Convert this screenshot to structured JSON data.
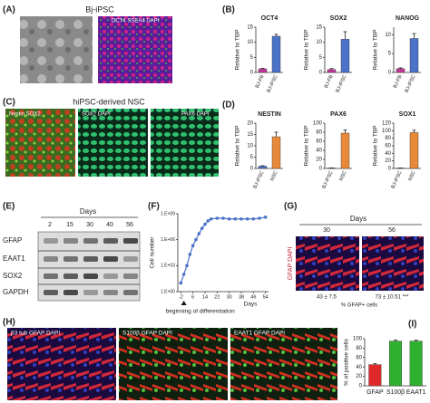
{
  "panels": {
    "A": {
      "label": "(A)",
      "title": "Bj-iPSC",
      "caption": "OCT4 SSEA4 DAPI"
    },
    "B": {
      "label": "(B)"
    },
    "C": {
      "label": "(C)",
      "title": "hiPSC-derived NSC",
      "captions": [
        "Nestin SOX2",
        "SOX2 DAPI",
        "PAX6 DAPI"
      ]
    },
    "D": {
      "label": "(D)"
    },
    "E": {
      "label": "(E)",
      "header": "Days",
      "lanes": [
        "2",
        "15",
        "30",
        "40",
        "56"
      ],
      "rows": [
        "GFAP",
        "EAAT1",
        "SOX2",
        "GAPDH"
      ]
    },
    "F": {
      "label": "(F)"
    },
    "G": {
      "label": "(G)",
      "header": "Days",
      "days": [
        "30",
        "56"
      ],
      "stain": "GFAP DAPI",
      "counts": [
        "43 ± 7.5",
        "73 ± 10.51 ***"
      ],
      "caption": "% GFAP+ cells"
    },
    "H": {
      "label": "(H)",
      "captions": [
        "β3 tub GFAP DAPI",
        "S100β GFAP DAPI",
        "EAAT1 GFAP DAPI"
      ]
    },
    "I": {
      "label": "(I)"
    }
  },
  "chart_data": [
    {
      "type": "bar",
      "title": "OCT4",
      "y_label": "Relative to TBP",
      "categories": [
        "BJ-FB",
        "BJ-iPSC"
      ],
      "values": [
        1.2,
        12
      ],
      "errors": [
        0.2,
        0.6
      ],
      "colors": [
        "#c2379a",
        "#4a72c8"
      ],
      "ylim": [
        0,
        15
      ],
      "yticks": [
        0,
        5,
        10,
        15
      ]
    },
    {
      "type": "bar",
      "title": "SOX2",
      "y_label": "Relative to TBP",
      "categories": [
        "BJ-FB",
        "BJ-iPSC"
      ],
      "values": [
        1,
        11
      ],
      "errors": [
        0.3,
        2.5
      ],
      "colors": [
        "#c2379a",
        "#4a72c8"
      ],
      "ylim": [
        0,
        15
      ],
      "yticks": [
        0,
        5,
        10,
        15
      ]
    },
    {
      "type": "bar",
      "title": "NANOG",
      "y_label": "Relative to TBP",
      "categories": [
        "BJ-FB",
        "BJ-iPSC"
      ],
      "values": [
        1,
        9
      ],
      "errors": [
        0.2,
        1.3
      ],
      "colors": [
        "#c2379a",
        "#4a72c8"
      ],
      "ylim": [
        0,
        12
      ],
      "yticks": [
        0,
        5,
        10
      ]
    },
    {
      "type": "bar",
      "title": "NESTIN",
      "y_label": "Relative to TBP",
      "categories": [
        "BJ-iPSC",
        "NSC"
      ],
      "values": [
        1,
        14
      ],
      "errors": [
        0.2,
        2
      ],
      "colors": [
        "#4a72c8",
        "#e8893a"
      ],
      "ylim": [
        0,
        20
      ],
      "yticks": [
        0,
        5,
        10,
        15,
        20
      ]
    },
    {
      "type": "bar",
      "title": "PAX6",
      "y_label": "Relative to TBP",
      "categories": [
        "BJ-iPSC",
        "NSC"
      ],
      "values": [
        1,
        78
      ],
      "errors": [
        0.3,
        7
      ],
      "colors": [
        "#4a72c8",
        "#e8893a"
      ],
      "ylim": [
        0,
        100
      ],
      "yticks": [
        0,
        20,
        40,
        60,
        80,
        100
      ]
    },
    {
      "type": "bar",
      "title": "SOX1",
      "y_label": "Relative to TBP",
      "categories": [
        "BJ-iPSC",
        "NSC"
      ],
      "values": [
        1,
        95
      ],
      "errors": [
        0.3,
        6
      ],
      "colors": [
        "#4a72c8",
        "#e8893a"
      ],
      "ylim": [
        0,
        120
      ],
      "yticks": [
        0,
        20,
        40,
        60,
        80,
        100,
        120
      ]
    },
    {
      "type": "line",
      "y_label": "Cell number",
      "x_label": "Days",
      "annotation": "beginning of differentiation",
      "color": "#4a72c8",
      "log_y": true,
      "x": [
        -2,
        0,
        2,
        4,
        6,
        8,
        10,
        12,
        14,
        16,
        18,
        22,
        26,
        30,
        34,
        38,
        42,
        46,
        50,
        54
      ],
      "values": [
        10,
        100,
        1000,
        20000,
        200000,
        1000000,
        5000000,
        20000000,
        60000000,
        150000000,
        250000000,
        300000000,
        300000000,
        250000000,
        250000000,
        250000000,
        250000000,
        250000000,
        300000000,
        400000000
      ],
      "xlim": [
        -4,
        56
      ],
      "xticks": [
        -2,
        6,
        14,
        22,
        30,
        38,
        46,
        54
      ],
      "ylim": [
        1,
        1000000000
      ],
      "yticks": [
        {
          "value": 1,
          "label": "1.E+00"
        },
        {
          "value": 1000,
          "label": "1.E+03"
        },
        {
          "value": 1000000,
          "label": "1.E+06"
        },
        {
          "value": 1000000000,
          "label": "1.E+09"
        }
      ]
    },
    {
      "type": "bar",
      "y_label": "% of positive cells",
      "categories": [
        "GFAP",
        "S100β",
        "EAAT1"
      ],
      "values": [
        45,
        95,
        95
      ],
      "errors": [
        2,
        2,
        2
      ],
      "colors": [
        "#e02a2a",
        "#2fb02f",
        "#2fb02f"
      ],
      "ylim": [
        0,
        100
      ],
      "yticks": [
        0,
        20,
        40,
        60,
        80,
        100
      ],
      "flat_labels": true
    }
  ]
}
